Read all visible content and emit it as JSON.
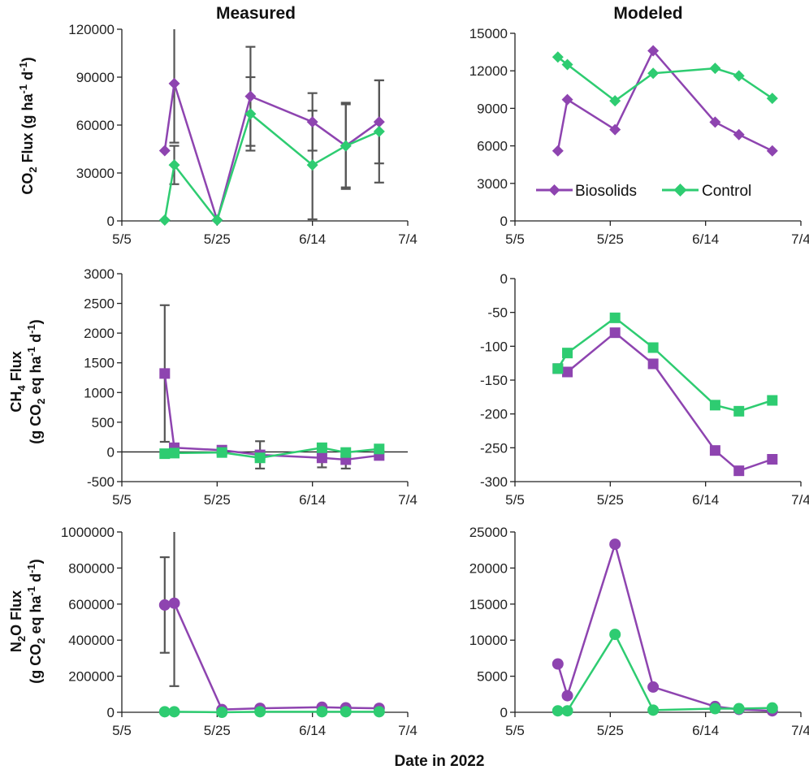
{
  "colors": {
    "Biosolids": "#8e44b0",
    "Control": "#2ecc71",
    "error_bar": "#555555",
    "axis": "#222222"
  },
  "labels": {
    "measured": "Measured",
    "modeled": "Modeled",
    "xaxis": "Date in 2022",
    "co2_pre": "CO",
    "co2_sub": "2",
    "co2_post": " Flux (g ha",
    "co2_sup1": "-1",
    "co2_mid": " d",
    "co2_sup2": "-1",
    "co2_end": ")",
    "ch4_line1_pre": "CH",
    "ch4_line1_sub": "4",
    "ch4_line1_post": " Flux",
    "n2o_line1_pre": "N",
    "n2o_line1_sub": "2",
    "n2o_line1_post": "O Flux",
    "line2_a": "(g CO",
    "line2_sub": "2",
    "line2_b": " eq ha",
    "line2_sup1": "-1",
    "line2_c": " d",
    "line2_sup2": "-1",
    "line2_d": ")"
  },
  "chart_data": [
    {
      "id": "co2-measured",
      "type": "line",
      "column": "Measured",
      "marker": "diamond",
      "x": [
        "5/14",
        "5/16",
        "5/25",
        "6/1",
        "6/14",
        "6/21",
        "6/28"
      ],
      "x_days": [
        9,
        11,
        20,
        27,
        40,
        47,
        54
      ],
      "xticks": [
        "5/5",
        "5/25",
        "6/14",
        "7/4"
      ],
      "xtick_days": [
        0,
        20,
        40,
        60
      ],
      "ylim": [
        0,
        120000
      ],
      "yticks": [
        "0",
        "30000",
        "60000",
        "90000",
        "120000"
      ],
      "ytick_values": [
        0,
        30000,
        60000,
        90000,
        120000
      ],
      "series": [
        {
          "name": "Biosolids",
          "values": [
            44000,
            86000,
            500,
            78000,
            62000,
            47000,
            62000
          ],
          "err": [
            null,
            37000,
            null,
            31000,
            18000,
            27000,
            26000
          ]
        },
        {
          "name": "Control",
          "values": [
            500,
            35000,
            500,
            67000,
            35000,
            47000,
            56000
          ],
          "err": [
            null,
            12000,
            null,
            23000,
            34000,
            26000,
            32000
          ]
        }
      ]
    },
    {
      "id": "co2-modeled",
      "type": "line",
      "column": "Modeled",
      "marker": "diamond",
      "x": [
        "5/14",
        "5/16",
        "5/26",
        "6/3",
        "6/16",
        "6/21",
        "6/28"
      ],
      "x_days": [
        9,
        11,
        21,
        29,
        42,
        47,
        54
      ],
      "xticks": [
        "5/5",
        "5/25",
        "6/14",
        "7/4"
      ],
      "xtick_days": [
        0,
        20,
        40,
        60
      ],
      "ylim": [
        0,
        15000
      ],
      "yticks": [
        "0",
        "3000",
        "6000",
        "9000",
        "12000",
        "15000"
      ],
      "ytick_values": [
        0,
        3000,
        6000,
        9000,
        12000,
        15000
      ],
      "legend": [
        "Biosolids",
        "Control"
      ],
      "series": [
        {
          "name": "Biosolids",
          "values": [
            5600,
            9700,
            7300,
            13600,
            7900,
            6900,
            5600
          ]
        },
        {
          "name": "Control",
          "values": [
            13100,
            12500,
            9600,
            11800,
            12200,
            11600,
            9800
          ]
        }
      ]
    },
    {
      "id": "ch4-measured",
      "type": "line",
      "column": "Measured",
      "marker": "square",
      "x": [
        "5/14",
        "5/16",
        "5/26",
        "6/3",
        "6/16",
        "6/21",
        "6/28"
      ],
      "x_days": [
        9,
        11,
        21,
        29,
        42,
        47,
        54
      ],
      "xticks": [
        "5/5",
        "5/25",
        "6/14",
        "7/4"
      ],
      "xtick_days": [
        0,
        20,
        40,
        60
      ],
      "ylim": [
        -500,
        3000
      ],
      "yticks": [
        "-500",
        "0",
        "500",
        "1000",
        "1500",
        "2000",
        "2500",
        "3000"
      ],
      "ytick_values": [
        -500,
        0,
        500,
        1000,
        1500,
        2000,
        2500,
        3000
      ],
      "zero_line": true,
      "series": [
        {
          "name": "Biosolids",
          "values": [
            1320,
            70,
            30,
            -50,
            -100,
            -130,
            -60
          ],
          "err": [
            1150,
            null,
            null,
            230,
            160,
            150,
            null
          ]
        },
        {
          "name": "Control",
          "values": [
            -30,
            -20,
            -10,
            -100,
            70,
            -10,
            50
          ],
          "err": [
            null,
            null,
            null,
            null,
            null,
            null,
            null
          ]
        }
      ]
    },
    {
      "id": "ch4-modeled",
      "type": "line",
      "column": "Modeled",
      "marker": "square",
      "x": [
        "5/14",
        "5/16",
        "5/26",
        "6/3",
        "6/16",
        "6/21",
        "6/28"
      ],
      "x_days": [
        9,
        11,
        21,
        29,
        42,
        47,
        54
      ],
      "xticks": [
        "5/5",
        "5/25",
        "6/14",
        "7/4"
      ],
      "xtick_days": [
        0,
        20,
        40,
        60
      ],
      "ylim": [
        -300,
        0
      ],
      "yticks": [
        "-300",
        "-250",
        "-200",
        "-150",
        "-100",
        "-50",
        "0"
      ],
      "ytick_values": [
        -300,
        -250,
        -200,
        -150,
        -100,
        -50,
        0
      ],
      "series": [
        {
          "name": "Biosolids",
          "values": [
            -133,
            -138,
            -80,
            -126,
            -254,
            -284,
            -267
          ]
        },
        {
          "name": "Control",
          "values": [
            -133,
            -110,
            -58,
            -102,
            -187,
            -196,
            -180
          ]
        }
      ]
    },
    {
      "id": "n2o-measured",
      "type": "line",
      "column": "Measured",
      "marker": "circle",
      "x": [
        "5/14",
        "5/16",
        "5/26",
        "6/3",
        "6/16",
        "6/21",
        "6/28"
      ],
      "x_days": [
        9,
        11,
        21,
        29,
        42,
        47,
        54
      ],
      "xticks": [
        "5/5",
        "5/25",
        "6/14",
        "7/4"
      ],
      "xtick_days": [
        0,
        20,
        40,
        60
      ],
      "ylim": [
        0,
        1000000
      ],
      "yticks": [
        "0",
        "200000",
        "400000",
        "600000",
        "800000",
        "1000000"
      ],
      "ytick_values": [
        0,
        200000,
        400000,
        600000,
        800000,
        1000000
      ],
      "series": [
        {
          "name": "Biosolids",
          "values": [
            595000,
            605000,
            15000,
            22000,
            28000,
            25000,
            22000
          ],
          "err": [
            265000,
            460000,
            null,
            null,
            null,
            null,
            null
          ]
        },
        {
          "name": "Control",
          "values": [
            3000,
            3000,
            0,
            3000,
            3000,
            3000,
            3000
          ],
          "err": [
            null,
            null,
            null,
            null,
            null,
            null,
            null
          ]
        }
      ]
    },
    {
      "id": "n2o-modeled",
      "type": "line",
      "column": "Modeled",
      "marker": "circle",
      "x": [
        "5/14",
        "5/16",
        "5/26",
        "6/3",
        "6/16",
        "6/21",
        "6/28"
      ],
      "x_days": [
        9,
        11,
        21,
        29,
        42,
        47,
        54
      ],
      "xticks": [
        "5/5",
        "5/25",
        "6/14",
        "7/4"
      ],
      "xtick_days": [
        0,
        20,
        40,
        60
      ],
      "ylim": [
        0,
        25000
      ],
      "yticks": [
        "0",
        "5000",
        "10000",
        "15000",
        "20000",
        "25000"
      ],
      "ytick_values": [
        0,
        5000,
        10000,
        15000,
        20000,
        25000
      ],
      "series": [
        {
          "name": "Biosolids",
          "values": [
            6700,
            2300,
            23300,
            3500,
            800,
            400,
            200
          ]
        },
        {
          "name": "Control",
          "values": [
            200,
            200,
            10800,
            300,
            500,
            500,
            600
          ]
        }
      ]
    }
  ]
}
